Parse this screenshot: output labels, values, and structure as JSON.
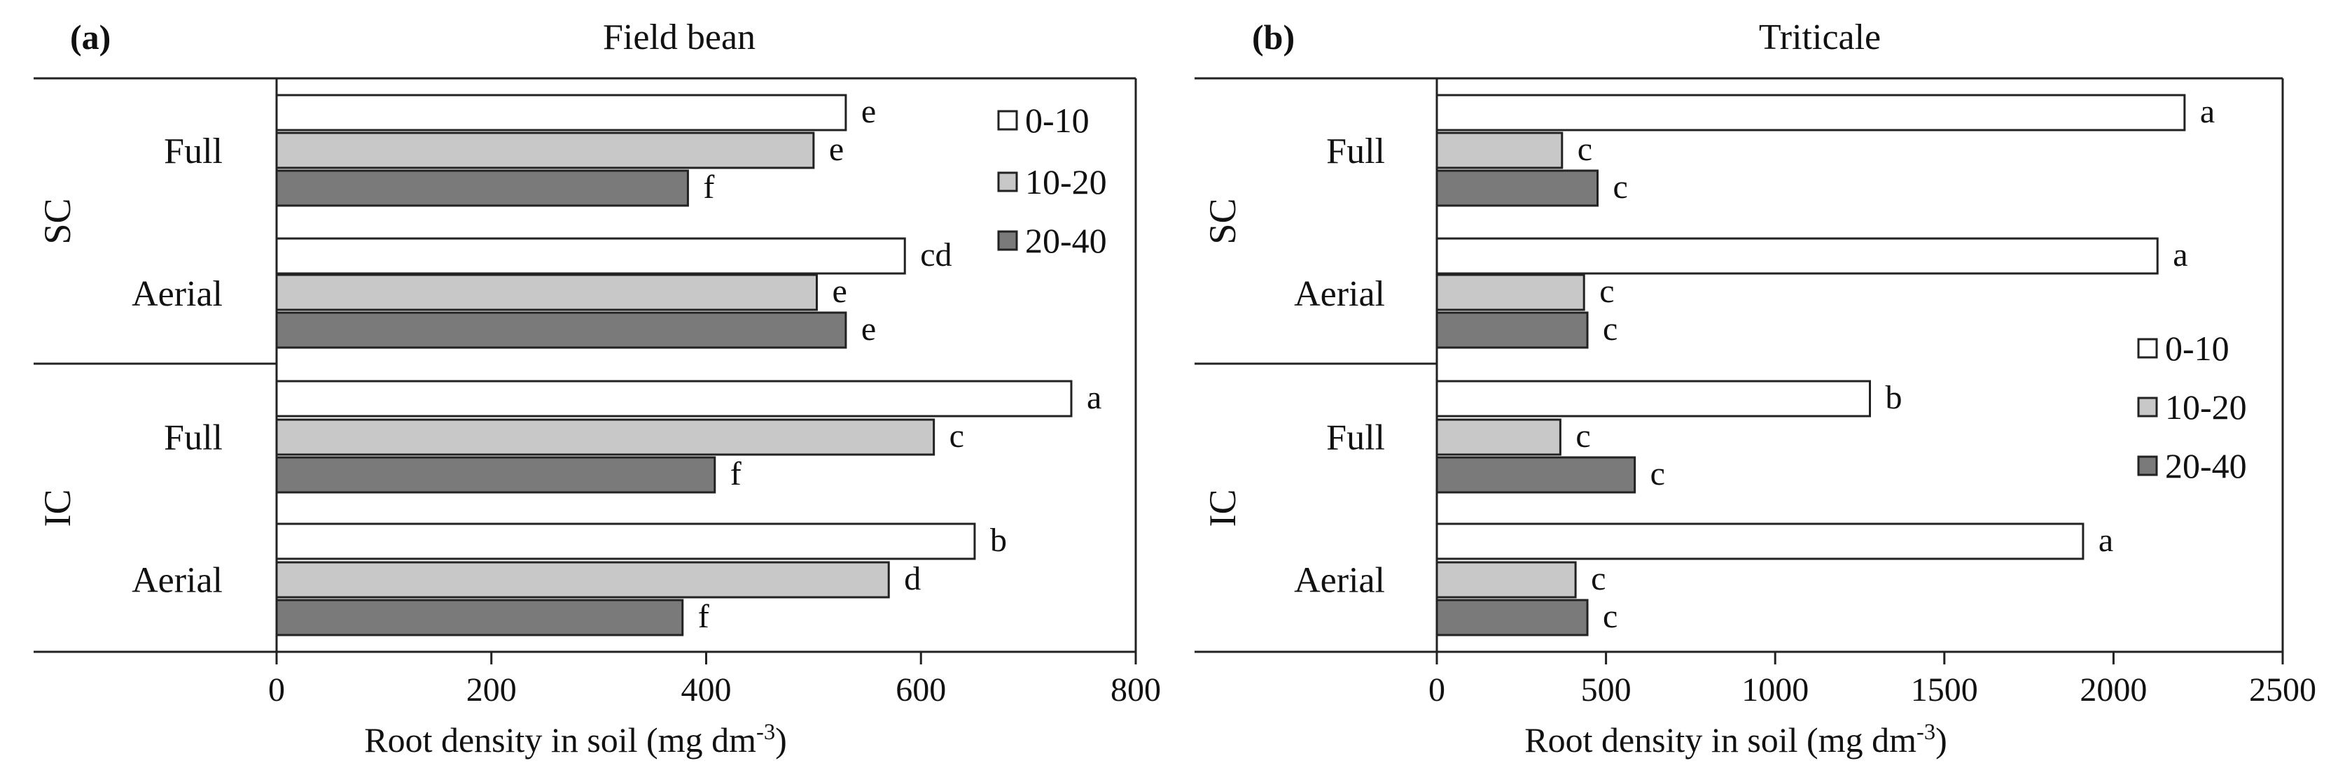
{
  "chart_data": [
    {
      "type": "bar",
      "orientation": "horizontal",
      "panel_label": "(a)",
      "title": "Field bean",
      "xlabel": "Root density in soil (mg dm",
      "xlabel_sup": "-3",
      "xlabel_end": ")",
      "xlim": [
        0,
        800
      ],
      "xticks": [
        0,
        200,
        400,
        600,
        800
      ],
      "groups": [
        {
          "label": "SC",
          "subgroups": [
            "Full",
            "Aerial"
          ]
        },
        {
          "label": "IC",
          "subgroups": [
            "Full",
            "Aerial"
          ]
        }
      ],
      "series": [
        {
          "name": "0-10",
          "color": "#ffffff",
          "values": [
            530,
            585,
            740,
            650
          ],
          "letters": [
            "e",
            "cd",
            "a",
            "b"
          ]
        },
        {
          "name": "10-20",
          "color": "#c8c8c8",
          "values": [
            500,
            503,
            612,
            570
          ],
          "letters": [
            "e",
            "e",
            "c",
            "d"
          ]
        },
        {
          "name": "20-40",
          "color": "#7a7a7a",
          "values": [
            383,
            530,
            408,
            378
          ],
          "letters": [
            "f",
            "e",
            "f",
            "f"
          ]
        }
      ],
      "legend_position": "top-right"
    },
    {
      "type": "bar",
      "orientation": "horizontal",
      "panel_label": "(b)",
      "title": "Triticale",
      "xlabel": "Root density in soil (mg dm",
      "xlabel_sup": "-3",
      "xlabel_end": ")",
      "xlim": [
        0,
        2500
      ],
      "xticks": [
        0,
        500,
        1000,
        1500,
        2000,
        2500
      ],
      "groups": [
        {
          "label": "SC",
          "subgroups": [
            "Full",
            "Aerial"
          ]
        },
        {
          "label": "IC",
          "subgroups": [
            "Full",
            "Aerial"
          ]
        }
      ],
      "series": [
        {
          "name": "0-10",
          "color": "#ffffff",
          "values": [
            2210,
            2130,
            1280,
            1910
          ],
          "letters": [
            "a",
            "a",
            "b",
            "a"
          ]
        },
        {
          "name": "10-20",
          "color": "#c8c8c8",
          "values": [
            370,
            435,
            365,
            410
          ],
          "letters": [
            "c",
            "c",
            "c",
            "c"
          ]
        },
        {
          "name": "20-40",
          "color": "#7a7a7a",
          "values": [
            475,
            445,
            585,
            445
          ],
          "letters": [
            "c",
            "c",
            "c",
            "c"
          ]
        }
      ],
      "legend_position": "right"
    }
  ]
}
